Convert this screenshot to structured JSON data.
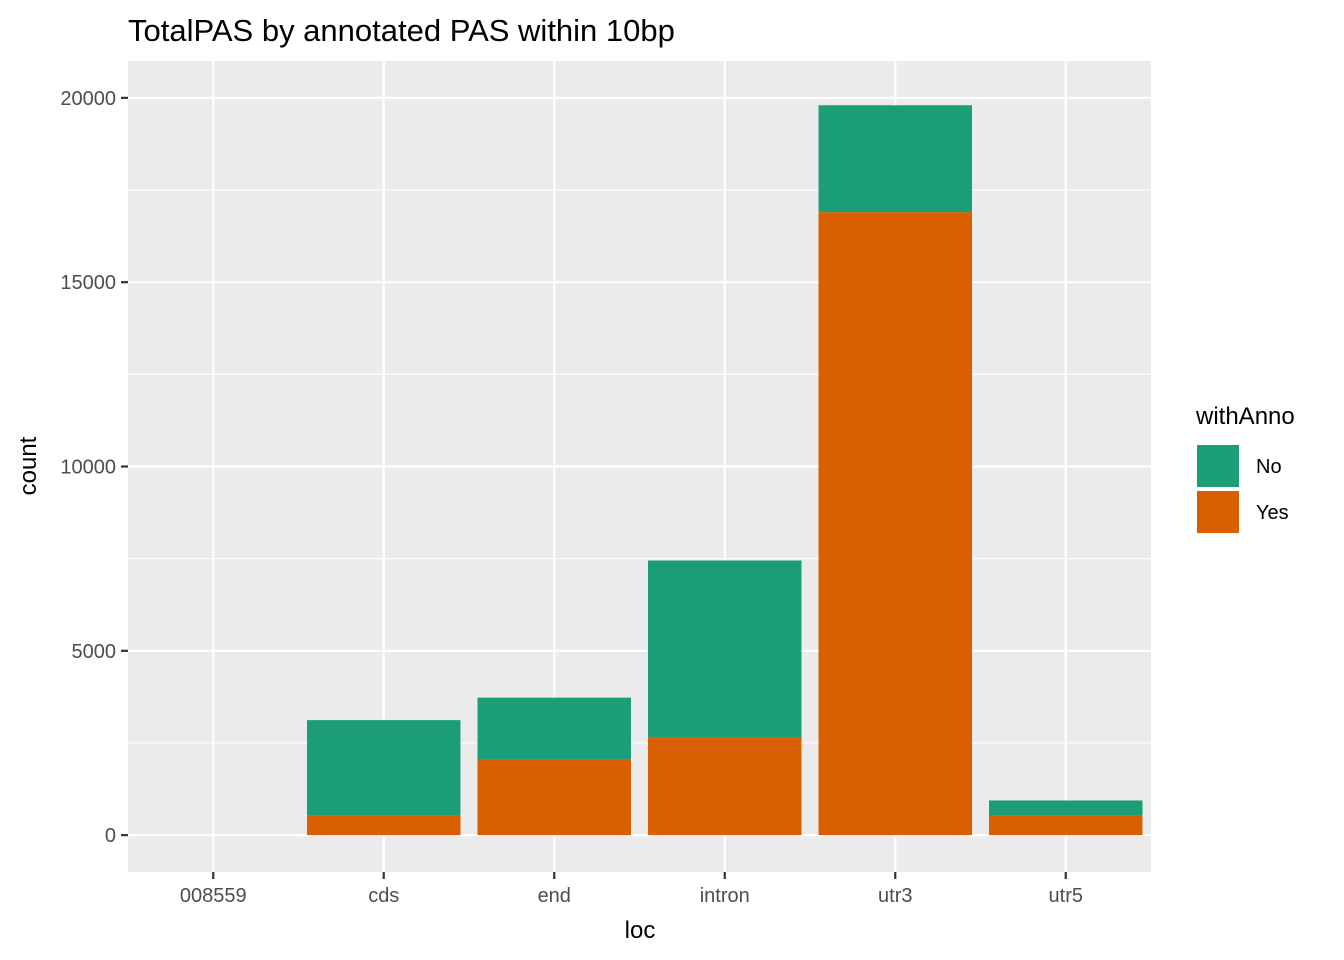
{
  "chart_data": {
    "type": "bar",
    "stacked": true,
    "title": "TotalPAS by annotated PAS within 10bp",
    "xlabel": "loc",
    "ylabel": "count",
    "categories": [
      "008559",
      "cds",
      "end",
      "intron",
      "utr3",
      "utr5"
    ],
    "series": [
      {
        "name": "Yes",
        "color": "#D95F02",
        "values": [
          1,
          530,
          2050,
          2650,
          16900,
          530
        ]
      },
      {
        "name": "No",
        "color": "#1B9E77",
        "values": [
          0,
          2590,
          1680,
          4800,
          2900,
          410
        ]
      }
    ],
    "ylim": [
      -1000,
      21000
    ],
    "yticks": [
      0,
      5000,
      10000,
      15000,
      20000
    ],
    "grid": true,
    "legend": {
      "title": "withAnno",
      "position": "right",
      "entries": [
        "No",
        "Yes"
      ]
    },
    "colors": {
      "panel": "#EBEBEB",
      "grid": "#FFFFFF",
      "No": "#1B9E77",
      "Yes": "#D95F02"
    }
  }
}
